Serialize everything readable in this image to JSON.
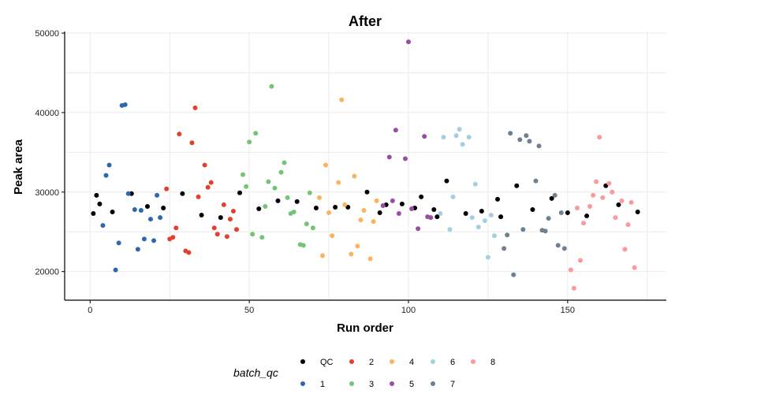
{
  "chart_data": {
    "type": "scatter",
    "title": "After",
    "xlabel": "Run order",
    "ylabel": "Peak area",
    "xlim": [
      -8,
      181
    ],
    "ylim": [
      16400,
      50200
    ],
    "xticks": [
      0,
      50,
      100,
      150
    ],
    "yticks": [
      20000,
      30000,
      40000,
      50000
    ],
    "ytick_labels": [
      "20000",
      "30000",
      "40000",
      "50000"
    ],
    "grid": true,
    "legend": {
      "title": "batch_qc",
      "placement": "bottom",
      "entries": [
        {
          "name": "QC",
          "color": "#000000"
        },
        {
          "name": "1",
          "color": "#2f67ac"
        },
        {
          "name": "2",
          "color": "#e3402f"
        },
        {
          "name": "3",
          "color": "#74c476"
        },
        {
          "name": "4",
          "color": "#fbb45d"
        },
        {
          "name": "5",
          "color": "#984ea3"
        },
        {
          "name": "6",
          "color": "#a6cee3"
        },
        {
          "name": "7",
          "color": "#708090"
        },
        {
          "name": "8",
          "color": "#fb9a99"
        }
      ]
    },
    "series": [
      {
        "name": "QC",
        "color": "#000000",
        "points": [
          [
            1,
            27300
          ],
          [
            2,
            29600
          ],
          [
            3,
            28500
          ],
          [
            7,
            27500
          ],
          [
            13,
            29800
          ],
          [
            18,
            28200
          ],
          [
            23,
            28000
          ],
          [
            29,
            29800
          ],
          [
            35,
            27100
          ],
          [
            41,
            26800
          ],
          [
            47,
            29900
          ],
          [
            53,
            27900
          ],
          [
            59,
            28900
          ],
          [
            65,
            28800
          ],
          [
            71,
            28000
          ],
          [
            77,
            28100
          ],
          [
            81,
            28100
          ],
          [
            87,
            30000
          ],
          [
            91,
            27400
          ],
          [
            93,
            28400
          ],
          [
            98,
            28500
          ],
          [
            102,
            28000
          ],
          [
            104,
            29400
          ],
          [
            108,
            27800
          ],
          [
            109,
            26900
          ],
          [
            112,
            31400
          ],
          [
            118,
            27300
          ],
          [
            123,
            27600
          ],
          [
            128,
            29100
          ],
          [
            129,
            26900
          ],
          [
            134,
            30800
          ],
          [
            139,
            27800
          ],
          [
            145,
            29200
          ],
          [
            150,
            27400
          ],
          [
            156,
            27000
          ],
          [
            162,
            30800
          ],
          [
            166,
            28400
          ],
          [
            172,
            27500
          ]
        ]
      },
      {
        "name": "1",
        "color": "#2f67ac",
        "points": [
          [
            4,
            25800
          ],
          [
            5,
            32100
          ],
          [
            6,
            33400
          ],
          [
            8,
            20200
          ],
          [
            9,
            23600
          ],
          [
            10,
            40900
          ],
          [
            11,
            41000
          ],
          [
            12,
            29800
          ],
          [
            14,
            27800
          ],
          [
            15,
            22800
          ],
          [
            16,
            27700
          ],
          [
            17,
            24100
          ],
          [
            19,
            26600
          ],
          [
            20,
            23900
          ],
          [
            21,
            29600
          ],
          [
            22,
            26800
          ]
        ]
      },
      {
        "name": "2",
        "color": "#e3402f",
        "points": [
          [
            24,
            30400
          ],
          [
            25,
            24100
          ],
          [
            26,
            24300
          ],
          [
            27,
            25500
          ],
          [
            28,
            37300
          ],
          [
            30,
            22600
          ],
          [
            31,
            22400
          ],
          [
            32,
            36200
          ],
          [
            33,
            40600
          ],
          [
            34,
            29400
          ],
          [
            36,
            33400
          ],
          [
            37,
            30600
          ],
          [
            38,
            31200
          ],
          [
            39,
            25500
          ],
          [
            40,
            24700
          ],
          [
            42,
            28400
          ],
          [
            43,
            24400
          ],
          [
            44,
            26600
          ],
          [
            45,
            27600
          ],
          [
            46,
            25300
          ]
        ]
      },
      {
        "name": "3",
        "color": "#74c476",
        "points": [
          [
            48,
            32200
          ],
          [
            49,
            30700
          ],
          [
            50,
            36300
          ],
          [
            51,
            24700
          ],
          [
            52,
            37400
          ],
          [
            54,
            24300
          ],
          [
            55,
            28200
          ],
          [
            56,
            31300
          ],
          [
            57,
            43300
          ],
          [
            58,
            30500
          ],
          [
            60,
            32500
          ],
          [
            61,
            33700
          ],
          [
            62,
            29300
          ],
          [
            63,
            27300
          ],
          [
            64,
            27500
          ],
          [
            66,
            23400
          ],
          [
            67,
            23300
          ],
          [
            68,
            26000
          ],
          [
            69,
            29900
          ],
          [
            70,
            25500
          ]
        ]
      },
      {
        "name": "4",
        "color": "#fbb45d",
        "points": [
          [
            72,
            29300
          ],
          [
            73,
            22000
          ],
          [
            74,
            33400
          ],
          [
            75,
            27400
          ],
          [
            76,
            24500
          ],
          [
            78,
            31200
          ],
          [
            79,
            41600
          ],
          [
            80,
            28400
          ],
          [
            82,
            22200
          ],
          [
            83,
            32000
          ],
          [
            84,
            23200
          ],
          [
            85,
            26500
          ],
          [
            86,
            27700
          ],
          [
            88,
            21600
          ],
          [
            89,
            26300
          ],
          [
            90,
            28900
          ]
        ]
      },
      {
        "name": "5",
        "color": "#984ea3",
        "points": [
          [
            92,
            28300
          ],
          [
            94,
            34400
          ],
          [
            95,
            28900
          ],
          [
            96,
            37800
          ],
          [
            97,
            27300
          ],
          [
            99,
            34200
          ],
          [
            100,
            48900
          ],
          [
            101,
            27900
          ],
          [
            103,
            25400
          ],
          [
            105,
            37000
          ],
          [
            106,
            26900
          ],
          [
            107,
            26800
          ]
        ]
      },
      {
        "name": "6",
        "color": "#a6cee3",
        "points": [
          [
            110,
            27300
          ],
          [
            111,
            36900
          ],
          [
            113,
            25300
          ],
          [
            114,
            29400
          ],
          [
            115,
            37100
          ],
          [
            116,
            37900
          ],
          [
            117,
            36000
          ],
          [
            119,
            36900
          ],
          [
            120,
            26800
          ],
          [
            121,
            31000
          ],
          [
            122,
            25600
          ],
          [
            124,
            26400
          ],
          [
            125,
            21800
          ],
          [
            126,
            27100
          ],
          [
            127,
            24500
          ]
        ]
      },
      {
        "name": "7",
        "color": "#708090",
        "points": [
          [
            130,
            22900
          ],
          [
            131,
            24600
          ],
          [
            132,
            37400
          ],
          [
            133,
            19600
          ],
          [
            135,
            36600
          ],
          [
            136,
            25300
          ],
          [
            137,
            37100
          ],
          [
            138,
            36400
          ],
          [
            140,
            31400
          ],
          [
            141,
            35800
          ],
          [
            142,
            25200
          ],
          [
            143,
            25100
          ],
          [
            144,
            26700
          ],
          [
            146,
            29600
          ],
          [
            147,
            23300
          ],
          [
            148,
            27400
          ],
          [
            149,
            22900
          ]
        ]
      },
      {
        "name": "8",
        "color": "#fb9a99",
        "points": [
          [
            151,
            20200
          ],
          [
            152,
            17900
          ],
          [
            153,
            28000
          ],
          [
            154,
            21400
          ],
          [
            155,
            26100
          ],
          [
            157,
            28200
          ],
          [
            158,
            29600
          ],
          [
            159,
            31300
          ],
          [
            160,
            36900
          ],
          [
            161,
            29300
          ],
          [
            163,
            31100
          ],
          [
            164,
            30000
          ],
          [
            165,
            26800
          ],
          [
            167,
            28900
          ],
          [
            168,
            22800
          ],
          [
            169,
            25900
          ],
          [
            170,
            28700
          ],
          [
            171,
            20500
          ]
        ]
      }
    ]
  }
}
